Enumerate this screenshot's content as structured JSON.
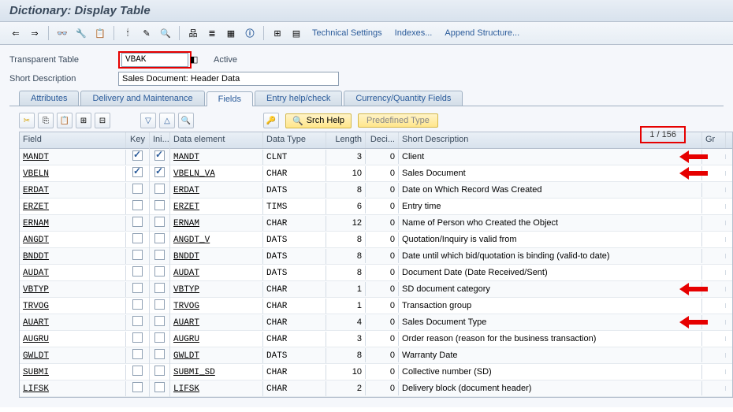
{
  "title": "Dictionary: Display Table",
  "toolbar_links": {
    "tech": "Technical Settings",
    "indexes": "Indexes...",
    "append": "Append Structure..."
  },
  "form": {
    "table_label": "Transparent Table",
    "table_value": "VBAK",
    "status": "Active",
    "desc_label": "Short Description",
    "desc_value": "Sales Document: Header Data"
  },
  "tabs": [
    "Attributes",
    "Delivery and Maintenance",
    "Fields",
    "Entry help/check",
    "Currency/Quantity Fields"
  ],
  "active_tab": 2,
  "srch_help": "Srch Help",
  "predef": "Predefined Type",
  "counter": "1  /  156",
  "columns": [
    "Field",
    "Key",
    "Ini...",
    "Data element",
    "Data Type",
    "Length",
    "Deci...",
    "Short Description",
    "Gr"
  ],
  "rows": [
    {
      "field": "MANDT",
      "key": true,
      "ini": true,
      "elem": "MANDT",
      "dtype": "CLNT",
      "len": 3,
      "dec": 0,
      "desc": "Client",
      "arrow": true
    },
    {
      "field": "VBELN",
      "key": true,
      "ini": true,
      "elem": "VBELN_VA",
      "dtype": "CHAR",
      "len": 10,
      "dec": 0,
      "desc": "Sales Document",
      "arrow": true
    },
    {
      "field": "ERDAT",
      "key": false,
      "ini": false,
      "elem": "ERDAT",
      "dtype": "DATS",
      "len": 8,
      "dec": 0,
      "desc": "Date on Which Record Was Created"
    },
    {
      "field": "ERZET",
      "key": false,
      "ini": false,
      "elem": "ERZET",
      "dtype": "TIMS",
      "len": 6,
      "dec": 0,
      "desc": "Entry time"
    },
    {
      "field": "ERNAM",
      "key": false,
      "ini": false,
      "elem": "ERNAM",
      "dtype": "CHAR",
      "len": 12,
      "dec": 0,
      "desc": "Name of Person who Created the Object"
    },
    {
      "field": "ANGDT",
      "key": false,
      "ini": false,
      "elem": "ANGDT_V",
      "dtype": "DATS",
      "len": 8,
      "dec": 0,
      "desc": "Quotation/Inquiry is valid from"
    },
    {
      "field": "BNDDT",
      "key": false,
      "ini": false,
      "elem": "BNDDT",
      "dtype": "DATS",
      "len": 8,
      "dec": 0,
      "desc": "Date until which bid/quotation is binding (valid-to date)"
    },
    {
      "field": "AUDAT",
      "key": false,
      "ini": false,
      "elem": "AUDAT",
      "dtype": "DATS",
      "len": 8,
      "dec": 0,
      "desc": "Document Date (Date Received/Sent)"
    },
    {
      "field": "VBTYP",
      "key": false,
      "ini": false,
      "elem": "VBTYP",
      "dtype": "CHAR",
      "len": 1,
      "dec": 0,
      "desc": "SD document category",
      "arrow": true
    },
    {
      "field": "TRVOG",
      "key": false,
      "ini": false,
      "elem": "TRVOG",
      "dtype": "CHAR",
      "len": 1,
      "dec": 0,
      "desc": "Transaction group"
    },
    {
      "field": "AUART",
      "key": false,
      "ini": false,
      "elem": "AUART",
      "dtype": "CHAR",
      "len": 4,
      "dec": 0,
      "desc": "Sales Document Type",
      "arrow": true
    },
    {
      "field": "AUGRU",
      "key": false,
      "ini": false,
      "elem": "AUGRU",
      "dtype": "CHAR",
      "len": 3,
      "dec": 0,
      "desc": "Order reason (reason for the business transaction)"
    },
    {
      "field": "GWLDT",
      "key": false,
      "ini": false,
      "elem": "GWLDT",
      "dtype": "DATS",
      "len": 8,
      "dec": 0,
      "desc": "Warranty Date"
    },
    {
      "field": "SUBMI",
      "key": false,
      "ini": false,
      "elem": "SUBMI_SD",
      "dtype": "CHAR",
      "len": 10,
      "dec": 0,
      "desc": "Collective number (SD)"
    },
    {
      "field": "LIFSK",
      "key": false,
      "ini": false,
      "elem": "LIFSK",
      "dtype": "CHAR",
      "len": 2,
      "dec": 0,
      "desc": "Delivery block (document header)"
    }
  ]
}
